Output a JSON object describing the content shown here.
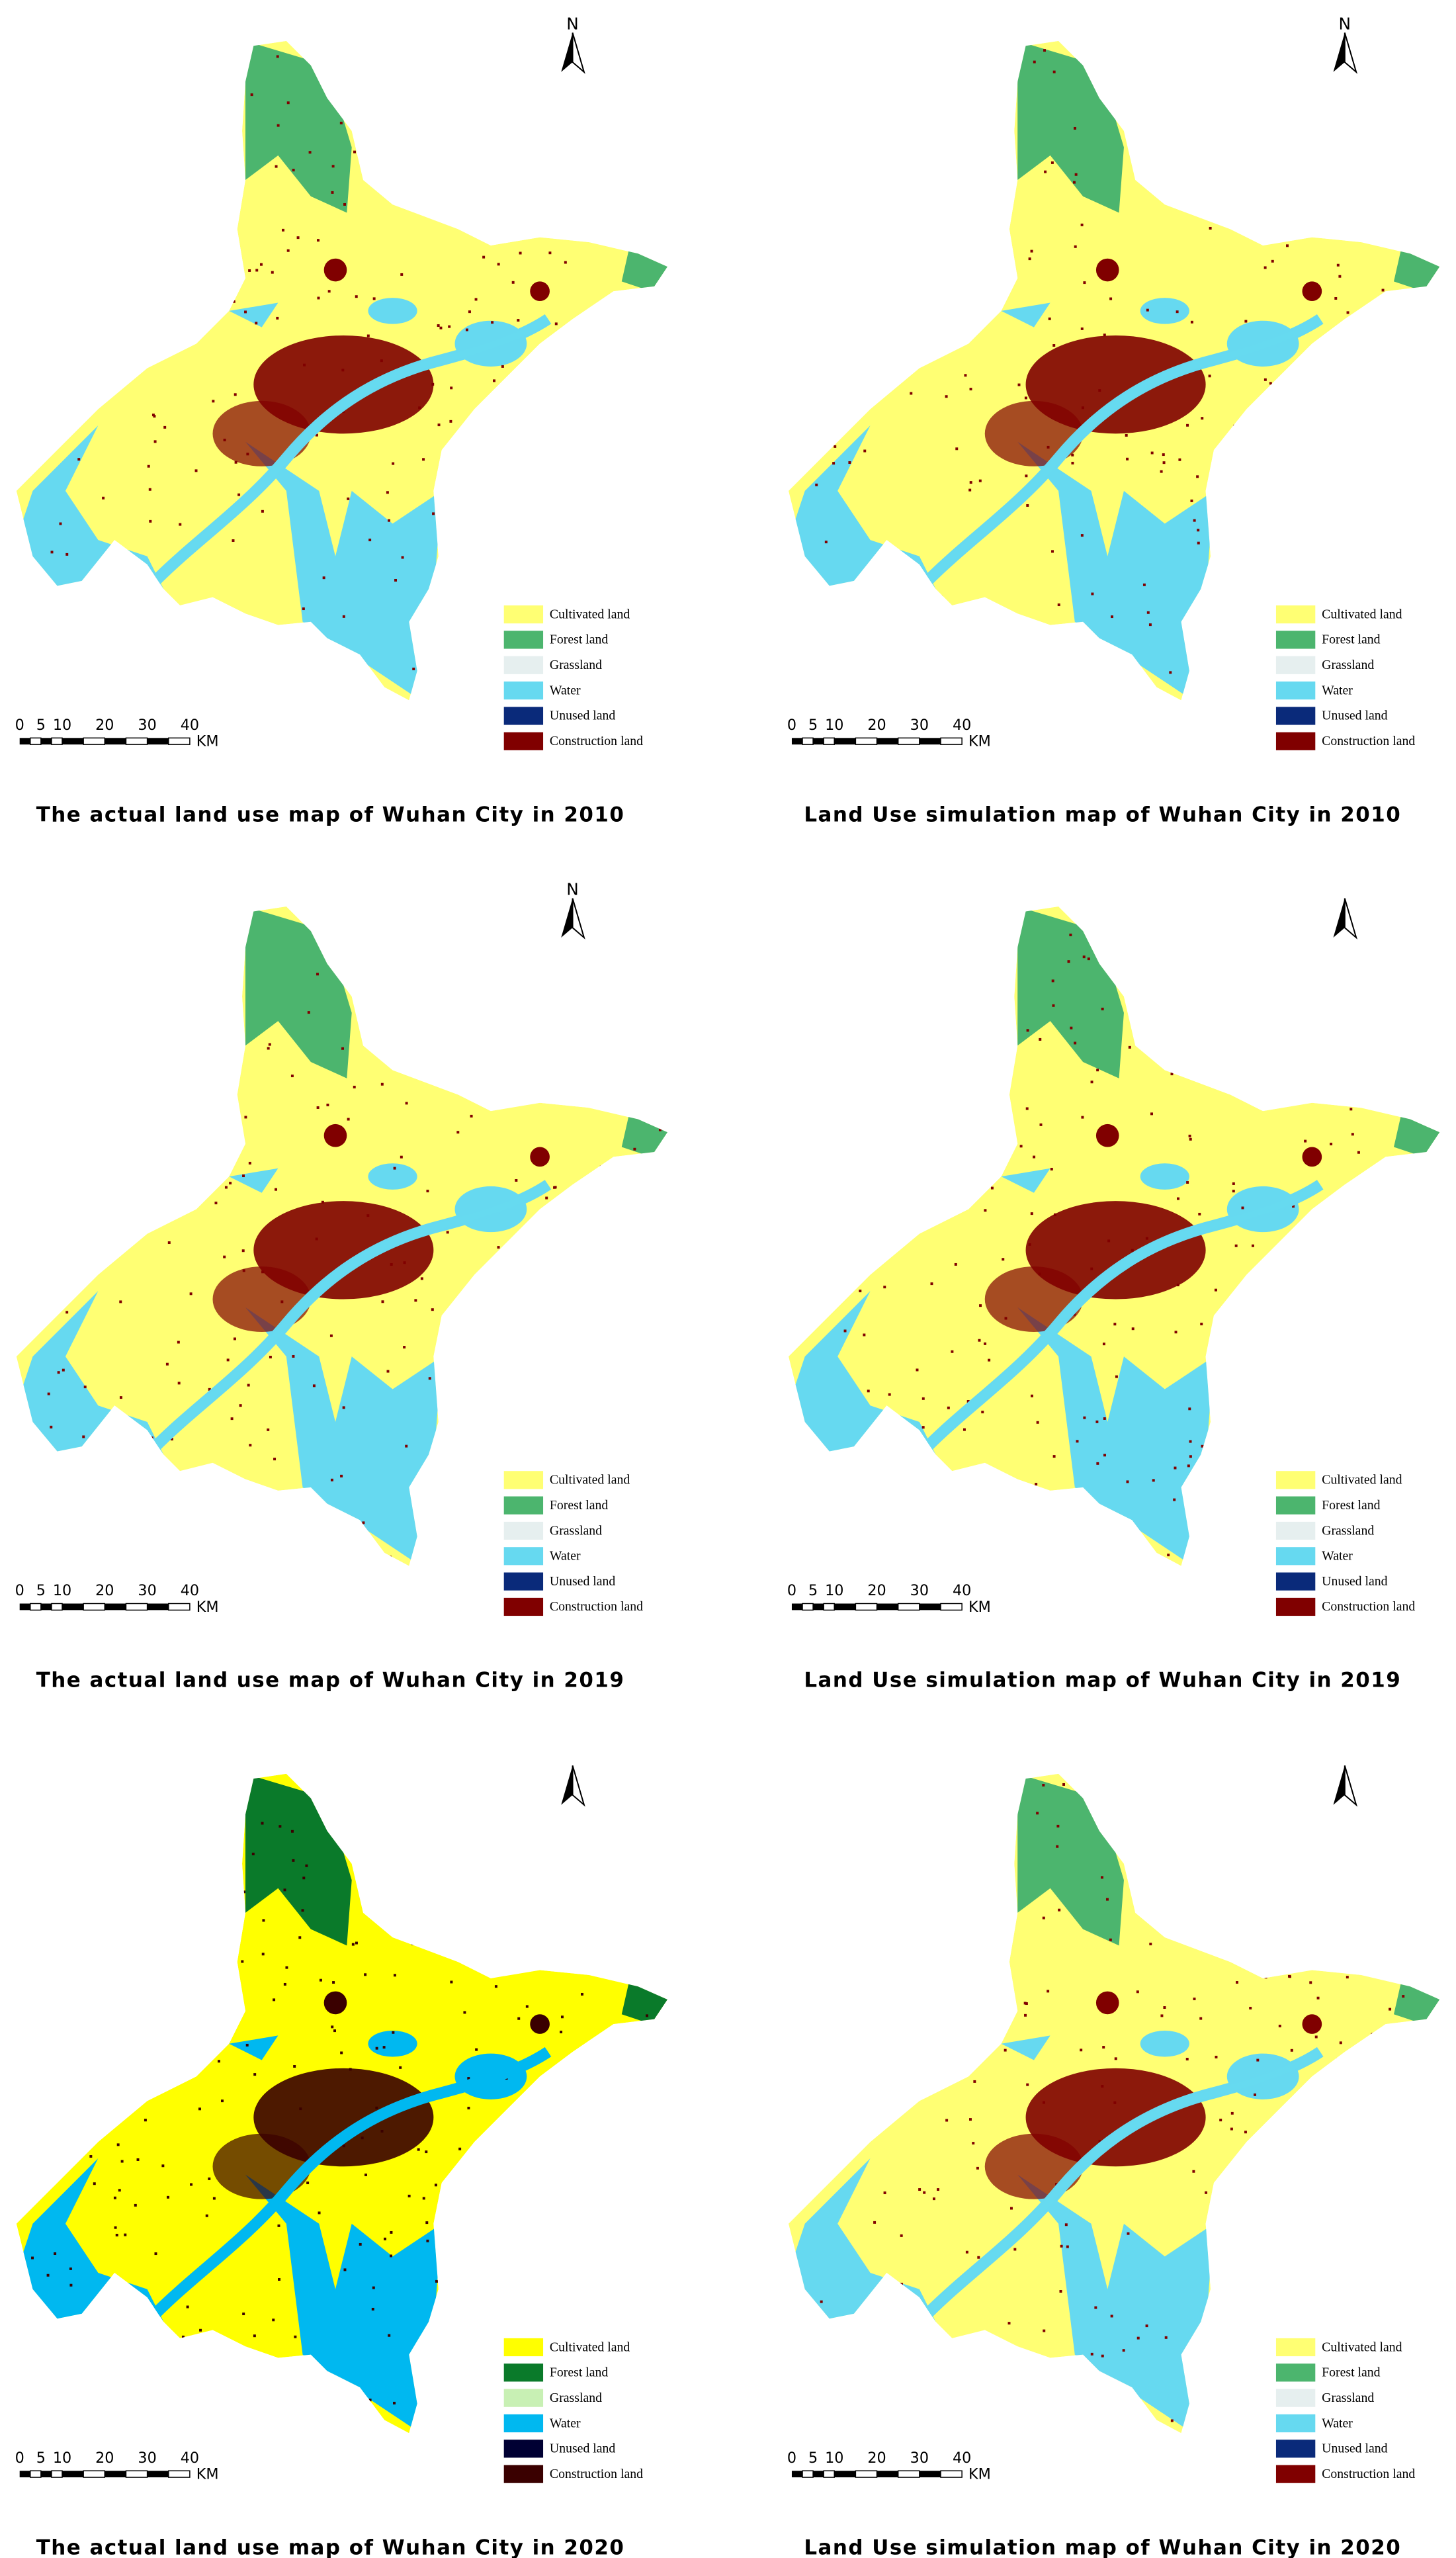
{
  "panels": [
    {
      "title": "The actual land use map of Wuhan City in 2010",
      "north": "N",
      "legend": [
        {
          "label": "Cultivated land",
          "color": "#ffff73"
        },
        {
          "label": "Forest land",
          "color": "#4cb56e"
        },
        {
          "label": "Grassland",
          "color": "#e6efef"
        },
        {
          "label": "Water",
          "color": "#66d9f0"
        },
        {
          "label": "Unused land",
          "color": "#0a2a7a"
        },
        {
          "label": "Construction land",
          "color": "#800000"
        }
      ],
      "scale": {
        "ticks": [
          0,
          5,
          10,
          20,
          30,
          40
        ],
        "unit": "KM"
      }
    },
    {
      "title": "Land Use simulation map of Wuhan City in 2010",
      "north": "N",
      "legend": [
        {
          "label": "Cultivated land",
          "color": "#ffff73"
        },
        {
          "label": "Forest land",
          "color": "#4cb56e"
        },
        {
          "label": "Grassland",
          "color": "#e6efef"
        },
        {
          "label": "Water",
          "color": "#66d9f0"
        },
        {
          "label": "Unused land",
          "color": "#0a2a7a"
        },
        {
          "label": "Construction land",
          "color": "#800000"
        }
      ],
      "scale": {
        "ticks": [
          0,
          5,
          10,
          20,
          30,
          40
        ],
        "unit": "KM"
      }
    },
    {
      "title": "The actual land use map of Wuhan City in 2019",
      "north": "N",
      "legend": [
        {
          "label": "Cultivated land",
          "color": "#ffff73"
        },
        {
          "label": "Forest land",
          "color": "#4cb56e"
        },
        {
          "label": "Grassland",
          "color": "#e6efef"
        },
        {
          "label": "Water",
          "color": "#66d9f0"
        },
        {
          "label": "Unused land",
          "color": "#0a2a7a"
        },
        {
          "label": "Construction land",
          "color": "#800000"
        }
      ],
      "scale": {
        "ticks": [
          0,
          5,
          10,
          20,
          30,
          40
        ],
        "unit": "KM"
      }
    },
    {
      "title": "Land Use simulation map of Wuhan City in 2019",
      "legend": [
        {
          "label": "Cultivated land",
          "color": "#ffff73"
        },
        {
          "label": "Forest land",
          "color": "#4cb56e"
        },
        {
          "label": "Grassland",
          "color": "#e6efef"
        },
        {
          "label": "Water",
          "color": "#66d9f0"
        },
        {
          "label": "Unused land",
          "color": "#0a2a7a"
        },
        {
          "label": "Construction land",
          "color": "#800000"
        }
      ],
      "scale": {
        "ticks": [
          0,
          5,
          10,
          20,
          30,
          40
        ],
        "unit": "KM"
      }
    },
    {
      "title": "The actual land use map of Wuhan City in 2020",
      "legend": [
        {
          "label": "Cultivated land",
          "color": "#ffff00"
        },
        {
          "label": "Forest land",
          "color": "#0a7a2a"
        },
        {
          "label": "Grassland",
          "color": "#c8f0b4"
        },
        {
          "label": "Water",
          "color": "#00b8f0"
        },
        {
          "label": "Unused land",
          "color": "#000033"
        },
        {
          "label": "Construction land",
          "color": "#3a0000"
        }
      ],
      "scale": {
        "ticks": [
          0,
          5,
          10,
          20,
          30,
          40
        ],
        "unit": "KM"
      }
    },
    {
      "title": "Land Use simulation map of Wuhan City in 2020",
      "legend": [
        {
          "label": "Cultivated land",
          "color": "#ffff73"
        },
        {
          "label": "Forest land",
          "color": "#4cb56e"
        },
        {
          "label": "Grassland",
          "color": "#e6efef"
        },
        {
          "label": "Water",
          "color": "#66d9f0"
        },
        {
          "label": "Unused land",
          "color": "#0a2a7a"
        },
        {
          "label": "Construction land",
          "color": "#800000"
        }
      ],
      "scale": {
        "ticks": [
          0,
          5,
          10,
          20,
          30,
          40
        ],
        "unit": "KM"
      }
    }
  ]
}
